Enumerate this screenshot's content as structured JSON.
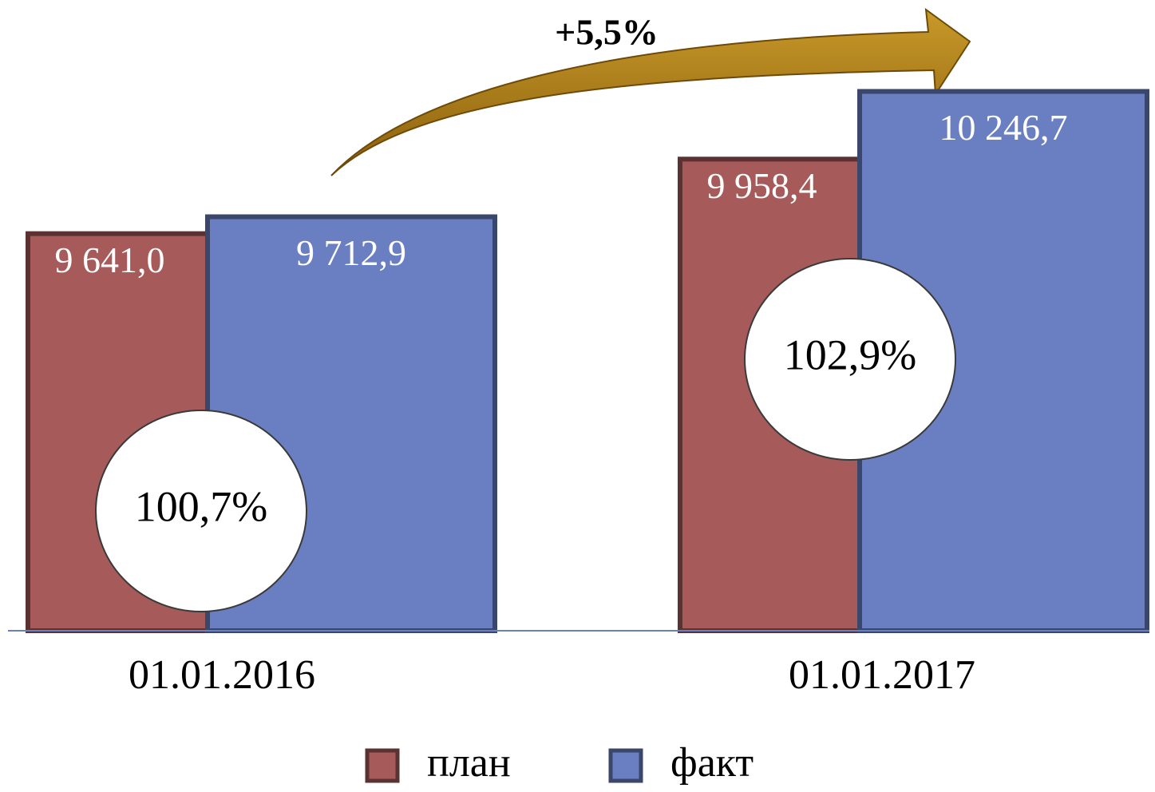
{
  "chart_data": {
    "type": "bar",
    "categories": [
      "01.01.2016",
      "01.01.2017"
    ],
    "series": [
      {
        "name": "план",
        "color": "#a65a5a",
        "values": [
          9641.0,
          9958.4
        ],
        "value_labels": [
          "9 641,0",
          "9 958,4"
        ]
      },
      {
        "name": "факт",
        "color": "#6a7fc1",
        "values": [
          9712.9,
          10246.7
        ],
        "value_labels": [
          "9 712,9",
          "10 246,7"
        ]
      }
    ],
    "ratio_labels": [
      "100,7%",
      "102,9%"
    ],
    "growth_label": "+5,5%",
    "ylim": [
      7950,
      10500
    ],
    "legend": "bottom"
  }
}
